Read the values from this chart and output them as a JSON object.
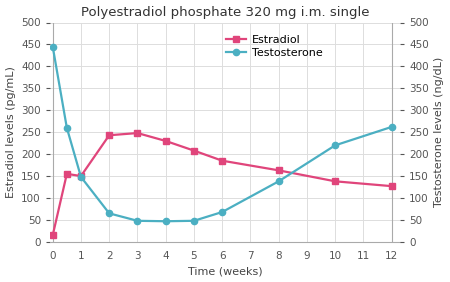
{
  "title": "Polyestradiol phosphate 320 mg i.m. single",
  "xlabel": "Time (weeks)",
  "ylabel_left": "Estradiol levels (pg/mL)",
  "ylabel_right": "Testosterone levels (ng/dL)",
  "estradiol_x": [
    0,
    0.5,
    1,
    2,
    3,
    4,
    5,
    6,
    8,
    10,
    12
  ],
  "estradiol_y": [
    15,
    155,
    150,
    243,
    248,
    230,
    208,
    185,
    163,
    138,
    127
  ],
  "testosterone_x": [
    0,
    0.5,
    1,
    2,
    3,
    4,
    5,
    6,
    8,
    10,
    12
  ],
  "testosterone_y": [
    445,
    260,
    148,
    65,
    48,
    47,
    48,
    68,
    138,
    220,
    262
  ],
  "estradiol_color": "#e0457b",
  "testosterone_color": "#4bafc2",
  "ylim_left": [
    0,
    500
  ],
  "ylim_right": [
    0,
    500
  ],
  "xlim": [
    -0.1,
    12.3
  ],
  "xticks": [
    0,
    1,
    2,
    3,
    4,
    5,
    6,
    7,
    8,
    9,
    10,
    11,
    12
  ],
  "yticks": [
    0,
    50,
    100,
    150,
    200,
    250,
    300,
    350,
    400,
    450,
    500
  ],
  "background_color": "#ffffff",
  "grid_color": "#dddddd",
  "title_fontsize": 9.5,
  "label_fontsize": 8,
  "tick_fontsize": 7.5,
  "legend_fontsize": 8,
  "marker_size": 4.5,
  "line_width": 1.6
}
